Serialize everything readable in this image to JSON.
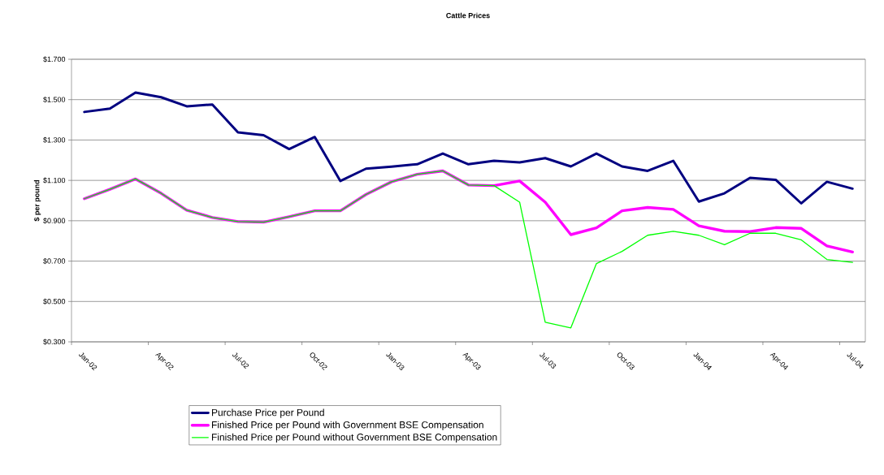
{
  "chart_data": {
    "type": "line",
    "title": "Cattle Prices",
    "ylabel": "$ per pound",
    "categories": [
      "Jan-02",
      null,
      null,
      "Apr-02",
      null,
      null,
      "Jul-02",
      null,
      null,
      "Oct-02",
      null,
      null,
      "Jan-03",
      null,
      null,
      "Apr-03",
      null,
      null,
      "Jul-03",
      null,
      null,
      "Oct-03",
      null,
      null,
      "Jan-04",
      null,
      null,
      "Apr-04",
      null,
      null,
      "Jul-04"
    ],
    "series": [
      {
        "name": "Purchase Price per Pound",
        "color": "#000080",
        "values": [
          1.439,
          1.456,
          1.535,
          1.512,
          1.467,
          1.476,
          1.338,
          1.324,
          1.255,
          1.315,
          1.097,
          1.158,
          1.168,
          1.18,
          1.233,
          1.18,
          1.197,
          1.189,
          1.21,
          1.169,
          1.233,
          1.169,
          1.147,
          1.197,
          0.995,
          1.036,
          1.113,
          1.103,
          0.986,
          1.093,
          1.059
        ]
      },
      {
        "name": "Finished Price per Pound with Government BSE Compensation",
        "color": "#ff00ff",
        "values": [
          1.009,
          1.056,
          1.107,
          1.036,
          0.952,
          0.916,
          0.896,
          0.893,
          0.92,
          0.949,
          0.949,
          1.03,
          1.093,
          1.13,
          1.147,
          1.077,
          1.074,
          1.097,
          0.992,
          0.831,
          0.865,
          0.949,
          0.966,
          0.956,
          0.875,
          0.848,
          0.846,
          0.866,
          0.862,
          0.775,
          0.745
        ]
      },
      {
        "name": "Finished Price per Pound without Government BSE Compensation",
        "color": "#00ff00",
        "values": [
          1.009,
          1.056,
          1.107,
          1.036,
          0.952,
          0.916,
          0.896,
          0.893,
          0.92,
          0.949,
          0.949,
          1.03,
          1.093,
          1.13,
          1.147,
          1.077,
          1.074,
          0.992,
          0.397,
          0.369,
          0.688,
          0.748,
          0.828,
          0.848,
          0.828,
          0.781,
          0.838,
          0.838,
          0.805,
          0.708,
          0.694
        ]
      }
    ],
    "ylim": [
      0.3,
      1.7
    ],
    "yticks": [
      {
        "value": 0.3,
        "label": "$0.300"
      },
      {
        "value": 0.5,
        "label": "$0.500"
      },
      {
        "value": 0.7,
        "label": "$0.700"
      },
      {
        "value": 0.9,
        "label": "$0.900"
      },
      {
        "value": 1.1,
        "label": "$1.100"
      },
      {
        "value": 1.3,
        "label": "$1.300"
      },
      {
        "value": 1.5,
        "label": "$1.500"
      },
      {
        "value": 1.7,
        "label": "$1.700"
      }
    ],
    "grid": "y",
    "legend": "bottom",
    "marker": "none",
    "line_style": "solid"
  }
}
